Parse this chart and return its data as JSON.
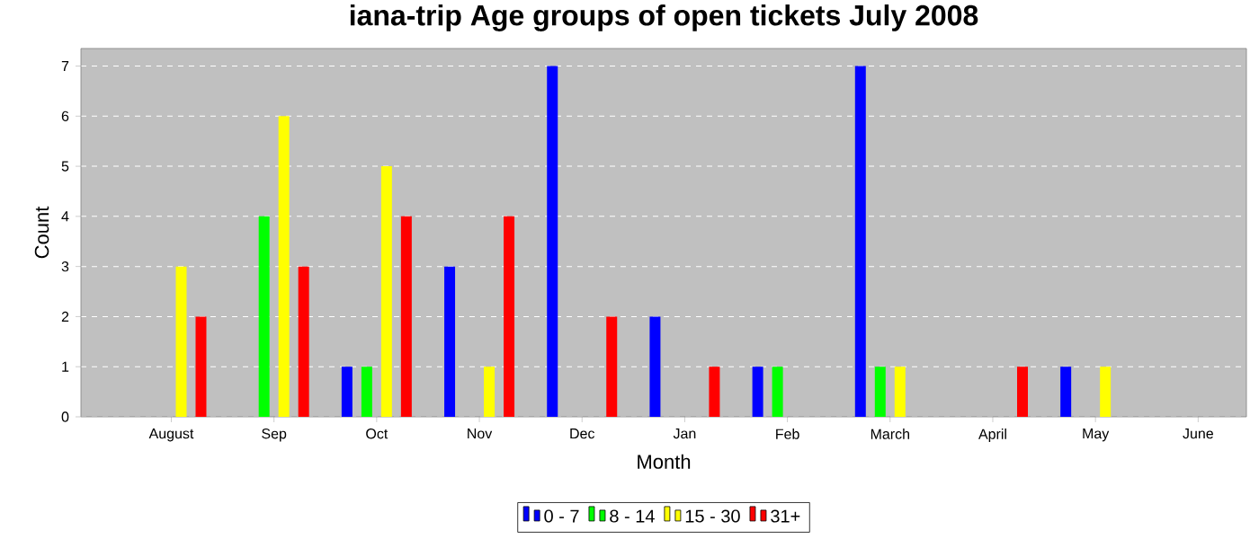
{
  "chart_data": {
    "type": "bar",
    "title": "iana-trip Age groups of open tickets July 2008",
    "xlabel": "Month",
    "ylabel": "Count",
    "categories": [
      "August",
      "Sep",
      "Oct",
      "Nov",
      "Dec",
      "Jan",
      "Feb",
      "March",
      "April",
      "May",
      "June"
    ],
    "series": [
      {
        "name": "0 - 7",
        "color": "#0000ff",
        "values": [
          0,
          0,
          1,
          3,
          7,
          2,
          1,
          7,
          0,
          1,
          0
        ]
      },
      {
        "name": "8 - 14",
        "color": "#00ff00",
        "values": [
          0,
          4,
          1,
          0,
          0,
          0,
          1,
          1,
          0,
          0,
          0
        ]
      },
      {
        "name": "15 - 30",
        "color": "#ffff00",
        "values": [
          3,
          6,
          5,
          1,
          0,
          0,
          0,
          1,
          0,
          1,
          0
        ]
      },
      {
        "name": "31+",
        "color": "#ff0000",
        "values": [
          2,
          3,
          4,
          4,
          2,
          1,
          0,
          0,
          1,
          0,
          0
        ]
      }
    ],
    "ylim": [
      0,
      7.35
    ],
    "yticks": [
      0,
      1,
      2,
      3,
      4,
      5,
      6,
      7
    ],
    "grid": "y",
    "legend": "bottom"
  }
}
